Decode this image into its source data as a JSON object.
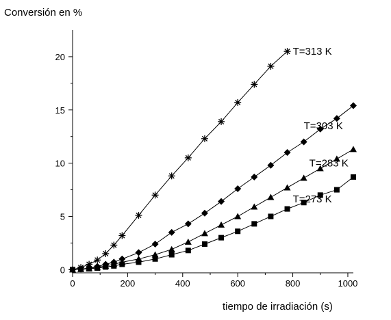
{
  "chart_data": {
    "type": "scatter",
    "title": "",
    "ylabel": "Conversión en %",
    "xlabel": "tiempo de irradiación (s)",
    "xlim": [
      0,
      1020
    ],
    "ylim": [
      -0.3,
      22.5
    ],
    "xticks": [
      0,
      200,
      400,
      600,
      800,
      1000
    ],
    "yticks": [
      0,
      5,
      10,
      15,
      20
    ],
    "grid": false,
    "legend": "inline labels at line ends",
    "series": [
      {
        "name": "T=313 K",
        "marker": "asterisk",
        "label_anchor": [
          800,
          20.2
        ],
        "x": [
          0,
          30,
          60,
          90,
          120,
          150,
          180,
          240,
          300,
          360,
          420,
          480,
          540,
          600,
          660,
          720,
          780
        ],
        "y": [
          0,
          0.2,
          0.5,
          0.9,
          1.5,
          2.3,
          3.2,
          5.1,
          7.0,
          8.8,
          10.5,
          12.3,
          13.9,
          15.7,
          17.4,
          19.1,
          20.5
        ]
      },
      {
        "name": "T=303 K",
        "marker": "diamond",
        "label_anchor": [
          840,
          13.2
        ],
        "x": [
          0,
          30,
          60,
          90,
          120,
          150,
          180,
          240,
          300,
          360,
          420,
          480,
          540,
          600,
          660,
          720,
          780,
          840,
          900,
          960,
          1020
        ],
        "y": [
          0,
          0.05,
          0.15,
          0.3,
          0.5,
          0.7,
          1.0,
          1.6,
          2.4,
          3.5,
          4.3,
          5.3,
          6.4,
          7.6,
          8.7,
          9.8,
          11.0,
          12.0,
          13.2,
          14.2,
          15.4
        ]
      },
      {
        "name": "T=283 K",
        "marker": "triangle",
        "label_anchor": [
          860,
          9.7
        ],
        "x": [
          0,
          30,
          60,
          90,
          120,
          150,
          180,
          240,
          300,
          360,
          420,
          480,
          540,
          600,
          660,
          720,
          780,
          840,
          900,
          960,
          1020
        ],
        "y": [
          0,
          0.05,
          0.1,
          0.2,
          0.35,
          0.5,
          0.7,
          1.0,
          1.4,
          1.9,
          2.6,
          3.4,
          4.2,
          5.0,
          5.9,
          6.8,
          7.7,
          8.6,
          9.5,
          10.4,
          11.3
        ]
      },
      {
        "name": "T=273 K",
        "marker": "square",
        "label_anchor": [
          800,
          6.3
        ],
        "x": [
          0,
          30,
          60,
          90,
          120,
          150,
          180,
          240,
          300,
          360,
          420,
          480,
          540,
          600,
          660,
          720,
          780,
          840,
          900,
          960,
          1020
        ],
        "y": [
          0,
          0.03,
          0.08,
          0.15,
          0.25,
          0.35,
          0.5,
          0.7,
          1.0,
          1.4,
          1.8,
          2.4,
          3.0,
          3.6,
          4.3,
          5.0,
          5.7,
          6.3,
          7.0,
          7.5,
          8.7
        ]
      }
    ]
  }
}
